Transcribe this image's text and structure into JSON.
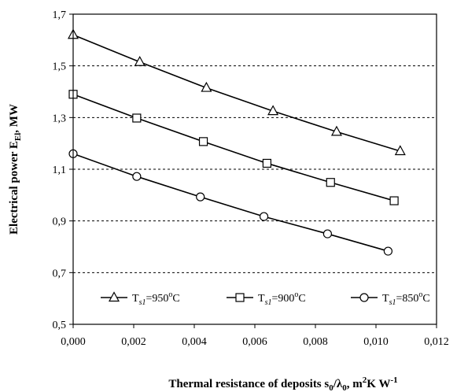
{
  "chart_data": {
    "type": "line",
    "xlabel_text": "Thermal resistance of deposits s",
    "xlabel_sub1": "0",
    "xlabel_mid": "/λ",
    "xlabel_sub2": "0",
    "xlabel_unit": ", m",
    "xlabel_sup1": "2",
    "xlabel_unit2": "K W",
    "xlabel_sup2": "-1",
    "ylabel_text": "Electrical power E",
    "ylabel_sub": "El",
    "ylabel_unit": ", MW",
    "xlim": [
      0,
      0.012
    ],
    "ylim": [
      0.5,
      1.7
    ],
    "xticks": [
      0,
      0.002,
      0.004,
      0.006,
      0.008,
      0.01,
      0.012
    ],
    "xtick_labels": [
      "0,000",
      "0,002",
      "0,004",
      "0,006",
      "0,008",
      "0,010",
      "0,012"
    ],
    "yticks": [
      0.5,
      0.7,
      0.9,
      1.1,
      1.3,
      1.5,
      1.7
    ],
    "ytick_labels": [
      "0,5",
      "0,7",
      "0,9",
      "1,1",
      "1,3",
      "1,5",
      "1,7"
    ],
    "grid": true,
    "legend_position": "bottom",
    "series": [
      {
        "name": "Ts1=950°C",
        "legend_main": "T",
        "legend_sub": "s1",
        "legend_val": "=950",
        "legend_deg": "o",
        "legend_unit": "C",
        "marker": "triangle",
        "x": [
          0.0,
          0.0022,
          0.0044,
          0.0066,
          0.0087,
          0.0108
        ],
        "y": [
          1.62,
          1.515,
          1.415,
          1.325,
          1.245,
          1.17
        ]
      },
      {
        "name": "Ts1=900°C",
        "legend_main": "T",
        "legend_sub": "s1",
        "legend_val": "=900",
        "legend_deg": "o",
        "legend_unit": "C",
        "marker": "square",
        "x": [
          0.0,
          0.0021,
          0.0043,
          0.0064,
          0.0085,
          0.0106
        ],
        "y": [
          1.39,
          1.298,
          1.207,
          1.123,
          1.049,
          0.978
        ]
      },
      {
        "name": "Ts1=850°C",
        "legend_main": "T",
        "legend_sub": "s1",
        "legend_val": "=850",
        "legend_deg": "o",
        "legend_unit": "C",
        "marker": "circle",
        "x": [
          0.0,
          0.0021,
          0.0042,
          0.0063,
          0.0084,
          0.0104
        ],
        "y": [
          1.16,
          1.072,
          0.993,
          0.917,
          0.85,
          0.783
        ]
      }
    ]
  }
}
